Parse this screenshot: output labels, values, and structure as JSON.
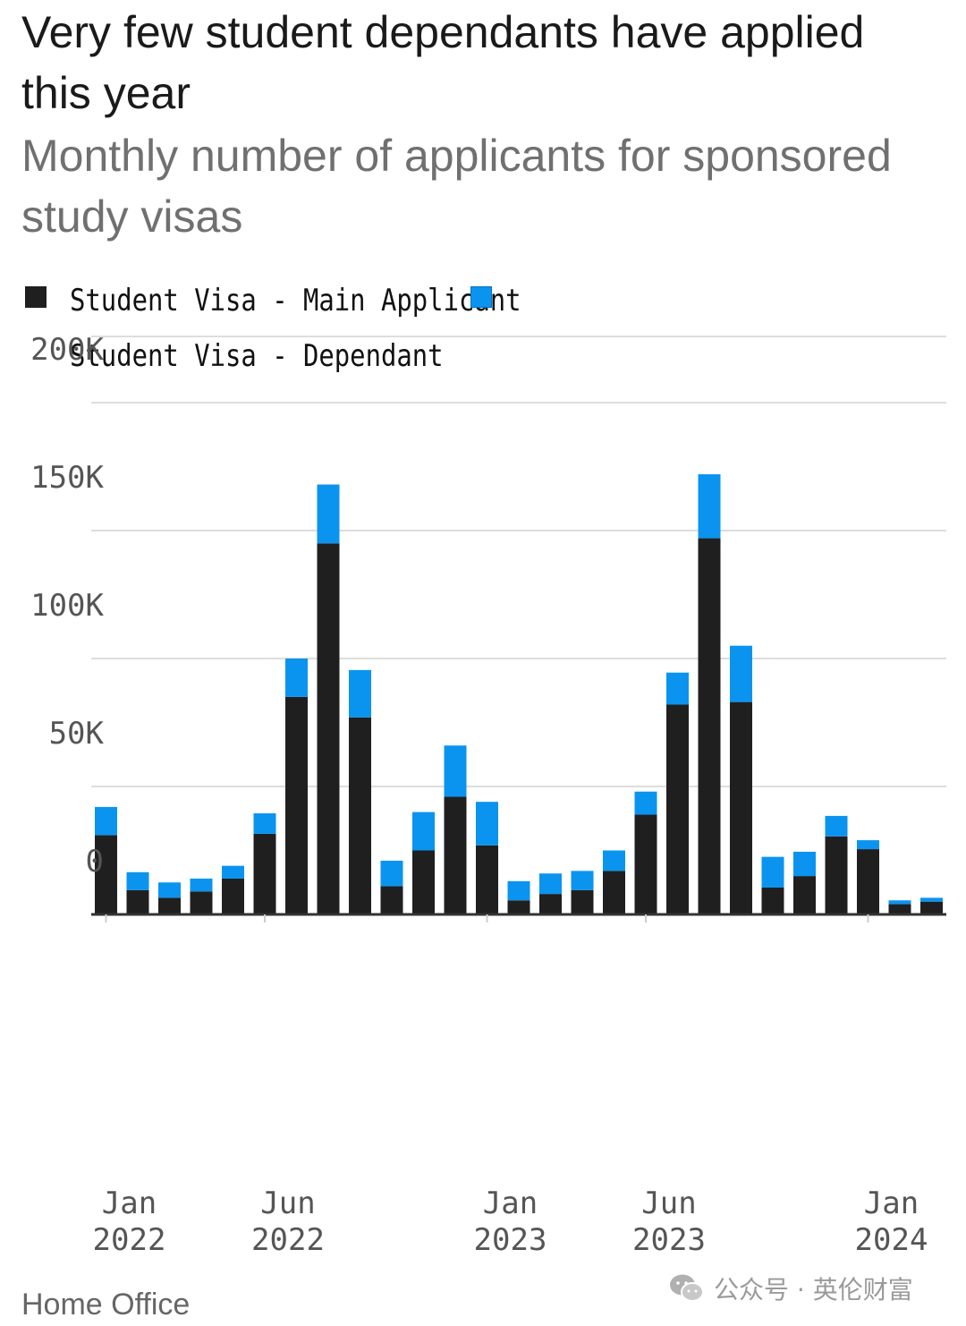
{
  "title": "Very few student dependants have applied this year",
  "subtitle": "Monthly number of applicants for sponsored study visas",
  "source": "Home Office",
  "watermark": {
    "text": "公众号 · 英伦财富",
    "icon": "wechat-icon"
  },
  "colors": {
    "main": "#1f1f1f",
    "dependant": "#0a94f0",
    "grid": "#dddddd",
    "axis": "#333333"
  },
  "legend": [
    {
      "label": "Student Visa - Main Applicant",
      "color": "#1f1f1f"
    },
    {
      "label": "Student Visa - Dependant",
      "color": "#0a94f0"
    }
  ],
  "chart_data": {
    "type": "bar",
    "stacked": true,
    "categories": [
      "Jan 2022",
      "Feb 2022",
      "Mar 2022",
      "Apr 2022",
      "May 2022",
      "Jun 2022",
      "Jul 2022",
      "Aug 2022",
      "Sep 2022",
      "Oct 2022",
      "Nov 2022",
      "Dec 2022",
      "Jan 2023",
      "Feb 2023",
      "Mar 2023",
      "Apr 2023",
      "May 2023",
      "Jun 2023",
      "Jul 2023",
      "Aug 2023",
      "Sep 2023",
      "Oct 2023",
      "Nov 2023",
      "Dec 2023",
      "Jan 2024",
      "Feb 2024",
      "Mar 2024"
    ],
    "series": [
      {
        "name": "Student Visa - Main Applicant",
        "values": [
          31000,
          9500,
          6500,
          9000,
          14000,
          31500,
          85000,
          145000,
          77000,
          11000,
          25000,
          46000,
          27000,
          5500,
          8000,
          9500,
          17000,
          39000,
          82000,
          147000,
          83000,
          10500,
          15000,
          30500,
          25500,
          4000,
          5000
        ]
      },
      {
        "name": "Student Visa - Dependant",
        "values": [
          11000,
          7000,
          6000,
          5000,
          5000,
          8000,
          15000,
          23000,
          18500,
          10000,
          15000,
          20000,
          17000,
          7500,
          8000,
          7500,
          8000,
          9000,
          12500,
          25000,
          22000,
          12000,
          9500,
          8000,
          3500,
          1500,
          1500
        ]
      }
    ],
    "x_tick_labels": [
      {
        "index": 0,
        "line1": "Jan",
        "line2": "2022"
      },
      {
        "index": 5,
        "line1": "Jun",
        "line2": "2022"
      },
      {
        "index": 12,
        "line1": "Jan",
        "line2": "2023"
      },
      {
        "index": 17,
        "line1": "Jun",
        "line2": "2023"
      },
      {
        "index": 24,
        "line1": "Jan",
        "line2": "2024"
      }
    ],
    "y_ticks": [
      {
        "value": 200000,
        "label": "200K"
      },
      {
        "value": 150000,
        "label": "150K"
      },
      {
        "value": 100000,
        "label": "100K"
      },
      {
        "value": 50000,
        "label": "50K"
      },
      {
        "value": 0,
        "label": "0"
      }
    ],
    "ylim": [
      0,
      200000
    ],
    "grid": true,
    "legend_position": "top-left"
  }
}
